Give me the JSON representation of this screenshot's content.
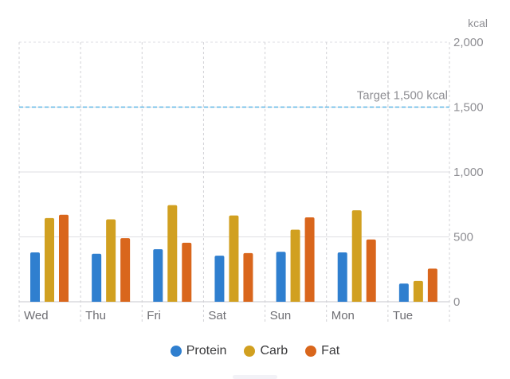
{
  "chart_data": {
    "type": "bar",
    "unit_label": "kcal",
    "categories": [
      "Wed",
      "Thu",
      "Fri",
      "Sat",
      "Sun",
      "Mon",
      "Tue"
    ],
    "series": [
      {
        "name": "Protein",
        "color": "#2f7fcf",
        "values": [
          380,
          370,
          405,
          355,
          385,
          380,
          140
        ]
      },
      {
        "name": "Carb",
        "color": "#d1a020",
        "values": [
          645,
          635,
          745,
          665,
          555,
          705,
          160
        ]
      },
      {
        "name": "Fat",
        "color": "#d9661c",
        "values": [
          670,
          490,
          455,
          375,
          650,
          480,
          255
        ]
      }
    ],
    "ylim": [
      0,
      2000
    ],
    "yticks": [
      0,
      500,
      1000,
      1500,
      2000
    ],
    "ytick_labels": [
      "0",
      "500",
      "1,000",
      "1,500",
      "2,000"
    ],
    "target": {
      "value": 1500,
      "label": "Target 1,500 kcal",
      "color": "#5ab4e6"
    },
    "grid": true,
    "legend_position": "bottom-center"
  }
}
